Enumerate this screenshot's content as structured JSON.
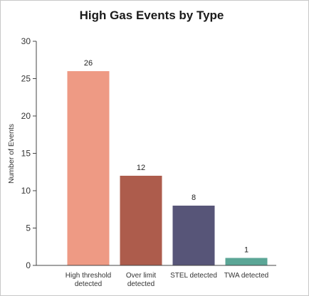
{
  "chart_data": {
    "type": "bar",
    "title": "High Gas Events by Type",
    "xlabel": "",
    "ylabel": "Number of Events",
    "categories": [
      [
        "High threshold",
        "detected"
      ],
      [
        "Over limit",
        "detected"
      ],
      [
        "STEL detected"
      ],
      [
        "TWA detected"
      ]
    ],
    "values": [
      26,
      12,
      8,
      1
    ],
    "colors": [
      "#ee9a84",
      "#ad5c4c",
      "#575578",
      "#5ba696"
    ],
    "ylim": [
      0,
      30
    ],
    "yticks": [
      0,
      5,
      10,
      15,
      20,
      25,
      30
    ],
    "grid": false,
    "legend": "none"
  }
}
